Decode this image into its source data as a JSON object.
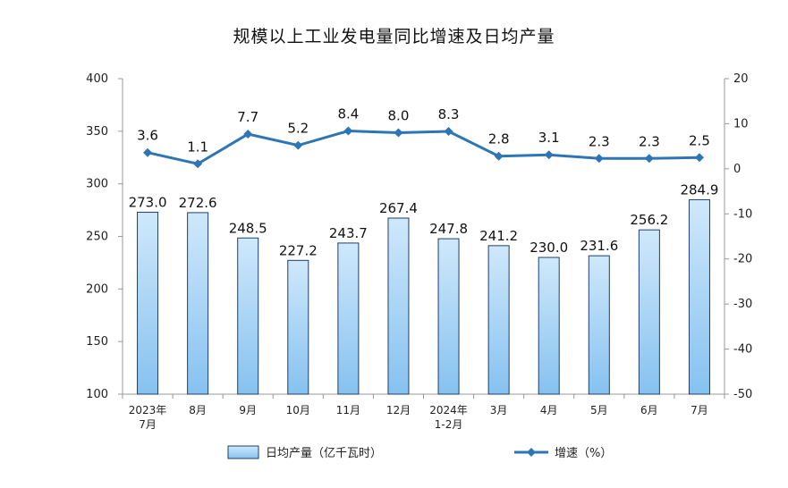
{
  "chart_data": {
    "type": "bar+line",
    "title": "规模以上工业发电量同比增速及日均产量",
    "categories": [
      [
        "2023年",
        "7月"
      ],
      [
        "8月"
      ],
      [
        "9月"
      ],
      [
        "10月"
      ],
      [
        "11月"
      ],
      [
        "12月"
      ],
      [
        "2024年",
        "1-2月"
      ],
      [
        "3月"
      ],
      [
        "4月"
      ],
      [
        "5月"
      ],
      [
        "6月"
      ],
      [
        "7月"
      ]
    ],
    "series": [
      {
        "name": "日均产量（亿千瓦时）",
        "type": "bar",
        "axis": "left",
        "values": [
          273.0,
          272.6,
          248.5,
          227.2,
          243.7,
          267.4,
          247.8,
          241.2,
          230.0,
          231.6,
          256.2,
          284.9
        ],
        "labels": [
          "273.0",
          "272.6",
          "248.5",
          "227.2",
          "243.7",
          "267.4",
          "247.8",
          "241.2",
          "230.0",
          "231.6",
          "256.2",
          "284.9"
        ]
      },
      {
        "name": "增速（%）",
        "type": "line",
        "axis": "right",
        "values": [
          3.6,
          1.1,
          7.7,
          5.2,
          8.4,
          8.0,
          8.3,
          2.8,
          3.1,
          2.3,
          2.3,
          2.5
        ],
        "labels": [
          "3.6",
          "1.1",
          "7.7",
          "5.2",
          "8.4",
          "8.0",
          "8.3",
          "2.8",
          "3.1",
          "2.3",
          "2.3",
          "2.5"
        ]
      }
    ],
    "y_left": {
      "min": 100,
      "max": 400,
      "ticks": [
        100,
        150,
        200,
        250,
        300,
        350,
        400
      ]
    },
    "y_right": {
      "min": -50,
      "max": 20,
      "ticks": [
        -50,
        -40,
        -30,
        -20,
        -10,
        0,
        10,
        20
      ]
    },
    "legend_placement": "bottom",
    "grid": false,
    "colors": {
      "bar_fill_top": "#cfe8fb",
      "bar_fill_bottom": "#86c2f0",
      "bar_stroke": "#1f3f66",
      "line": "#2e75b6",
      "axis": "#999999"
    }
  }
}
